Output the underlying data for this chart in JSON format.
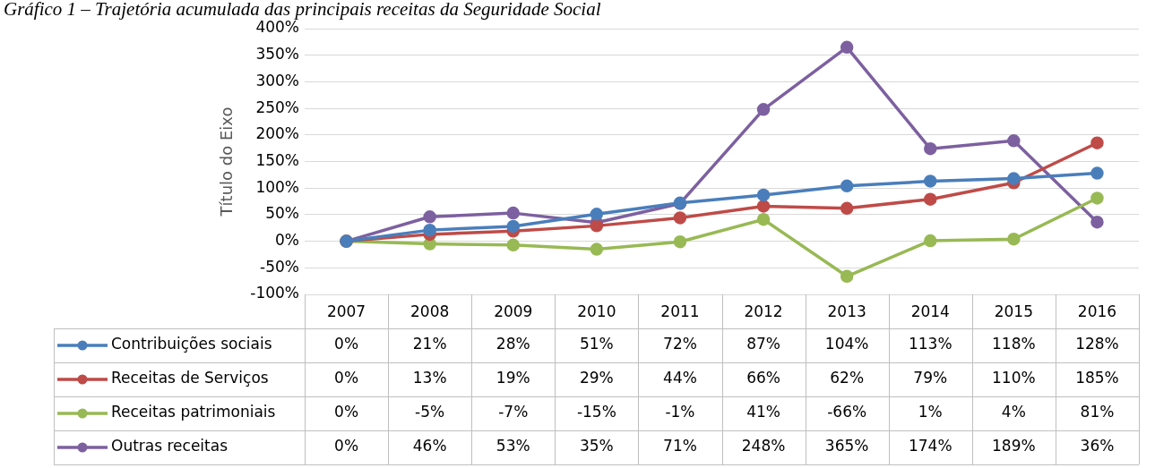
{
  "chart_data": {
    "type": "line",
    "title": "Gráfico 1 – Trajetória acumulada das principais receitas da Seguridade Social",
    "ylabel": "Título do Eixo",
    "categories": [
      "2007",
      "2008",
      "2009",
      "2010",
      "2011",
      "2012",
      "2013",
      "2014",
      "2015",
      "2016"
    ],
    "ylim": [
      -100,
      400
    ],
    "yticks": [
      {
        "value": -100,
        "label": "-100%"
      },
      {
        "value": -50,
        "label": "-50%"
      },
      {
        "value": 0,
        "label": "0%"
      },
      {
        "value": 50,
        "label": "50%"
      },
      {
        "value": 100,
        "label": "100%"
      },
      {
        "value": 150,
        "label": "150%"
      },
      {
        "value": 200,
        "label": "200%"
      },
      {
        "value": 250,
        "label": "250%"
      },
      {
        "value": 300,
        "label": "300%"
      },
      {
        "value": 350,
        "label": "350%"
      },
      {
        "value": 400,
        "label": "400%"
      }
    ],
    "grid": "y",
    "legend": "bottom",
    "marker": "circle",
    "line_style": "solid",
    "series": [
      {
        "name": "Contribuições sociais",
        "color": "#4a7ebb",
        "values": [
          0,
          21,
          28,
          51,
          72,
          87,
          104,
          113,
          118,
          128
        ],
        "value_labels": [
          "0%",
          "21%",
          "28%",
          "51%",
          "72%",
          "87%",
          "104%",
          "113%",
          "118%",
          "128%"
        ]
      },
      {
        "name": "Receitas de Serviços",
        "color": "#be4b48",
        "values": [
          0,
          13,
          19,
          29,
          44,
          66,
          62,
          79,
          110,
          185
        ],
        "value_labels": [
          "0%",
          "13%",
          "19%",
          "29%",
          "44%",
          "66%",
          "62%",
          "79%",
          "110%",
          "185%"
        ]
      },
      {
        "name": "Receitas patrimoniais",
        "color": "#98b954",
        "values": [
          0,
          -5,
          -7,
          -15,
          -1,
          41,
          -66,
          1,
          4,
          81
        ],
        "value_labels": [
          "0%",
          "-5%",
          "-7%",
          "-15%",
          "-1%",
          "41%",
          "-66%",
          "1%",
          "4%",
          "81%"
        ]
      },
      {
        "name": "Outras receitas",
        "color": "#7d60a0",
        "values": [
          0,
          46,
          53,
          35,
          71,
          248,
          365,
          174,
          189,
          36
        ],
        "value_labels": [
          "0%",
          "46%",
          "53%",
          "35%",
          "71%",
          "248%",
          "365%",
          "174%",
          "189%",
          "36%"
        ]
      }
    ]
  }
}
